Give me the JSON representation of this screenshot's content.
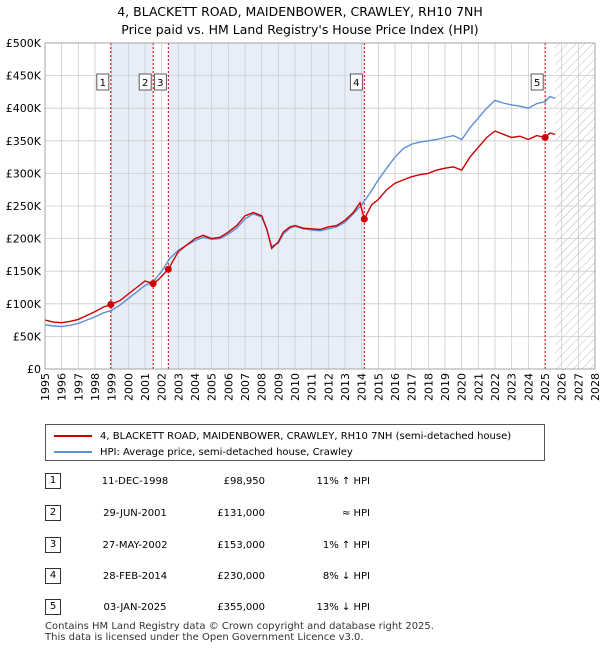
{
  "header": {
    "title_line1": "4, BLACKETT ROAD, MAIDENBOWER, CRAWLEY, RH10 7NH",
    "title_line2": "Price paid vs. HM Land Registry's House Price Index (HPI)"
  },
  "colors": {
    "property": "#cc0000",
    "hpi": "#5b8fd6",
    "marker": "#cc0000",
    "shade": "#e8eef8",
    "grid": "#cccccc"
  },
  "chart_data": {
    "type": "line",
    "title": "Price paid vs. HM Land Registry's House Price Index (HPI)",
    "xlabel": "",
    "ylabel": "",
    "xlim": [
      1995,
      2028
    ],
    "ylim": [
      0,
      500000
    ],
    "x_ticks": [
      1995,
      1996,
      1997,
      1998,
      1999,
      2000,
      2001,
      2002,
      2003,
      2004,
      2005,
      2006,
      2007,
      2008,
      2009,
      2010,
      2011,
      2012,
      2013,
      2014,
      2015,
      2016,
      2017,
      2018,
      2019,
      2020,
      2021,
      2022,
      2023,
      2024,
      2025,
      2026,
      2027,
      2028
    ],
    "y_ticks": [
      0,
      50000,
      100000,
      150000,
      200000,
      250000,
      300000,
      350000,
      400000,
      450000,
      500000
    ],
    "y_tick_labels": [
      "£0",
      "£50K",
      "£100K",
      "£150K",
      "£200K",
      "£250K",
      "£300K",
      "£350K",
      "£400K",
      "£450K",
      "£500K"
    ],
    "series": [
      {
        "name": "4, BLACKETT ROAD, MAIDENBOWER, CRAWLEY, RH10 7NH (semi-detached house)",
        "x": [
          1995,
          1995.5,
          1996,
          1996.5,
          1997,
          1997.5,
          1998,
          1998.5,
          1998.95,
          1999.5,
          2000,
          2000.5,
          2001,
          2001.49,
          2001.8,
          2002.1,
          2002.4,
          2003,
          2003.5,
          2004,
          2004.5,
          2005,
          2005.5,
          2006,
          2006.5,
          2007,
          2007.5,
          2008,
          2008.3,
          2008.6,
          2009,
          2009.3,
          2009.7,
          2010,
          2010.5,
          2011,
          2011.5,
          2012,
          2012.5,
          2013,
          2013.5,
          2013.9,
          2014.16,
          2014.6,
          2015,
          2015.5,
          2016,
          2016.5,
          2017,
          2017.5,
          2018,
          2018.5,
          2019,
          2019.5,
          2020,
          2020.5,
          2021,
          2021.5,
          2022,
          2022.5,
          2023,
          2023.5,
          2024,
          2024.5,
          2025.01,
          2025.3,
          2025.6
        ],
        "values": [
          75000,
          72000,
          71000,
          73000,
          76000,
          82000,
          88000,
          95000,
          98950,
          105000,
          115000,
          125000,
          135000,
          131000,
          137000,
          145000,
          153000,
          180000,
          190000,
          200000,
          205000,
          200000,
          202000,
          210000,
          220000,
          235000,
          240000,
          235000,
          215000,
          185000,
          195000,
          210000,
          218000,
          220000,
          216000,
          215000,
          214000,
          218000,
          220000,
          228000,
          240000,
          255000,
          230000,
          252000,
          260000,
          275000,
          285000,
          290000,
          295000,
          298000,
          300000,
          305000,
          308000,
          310000,
          305000,
          325000,
          340000,
          355000,
          365000,
          360000,
          355000,
          357000,
          352000,
          358000,
          355000,
          362000,
          360000
        ]
      },
      {
        "name": "HPI: Average price, semi-detached house, Crawley",
        "x": [
          1995,
          1995.5,
          1996,
          1996.5,
          1997,
          1997.5,
          1998,
          1998.5,
          1999,
          1999.5,
          2000,
          2000.5,
          2001,
          2001.5,
          2002,
          2002.5,
          2003,
          2003.5,
          2004,
          2004.5,
          2005,
          2005.5,
          2006,
          2006.5,
          2007,
          2007.5,
          2008,
          2008.3,
          2008.6,
          2009,
          2009.3,
          2009.7,
          2010,
          2010.5,
          2011,
          2011.5,
          2012,
          2012.5,
          2013,
          2013.5,
          2014,
          2014.5,
          2015,
          2015.5,
          2016,
          2016.5,
          2017,
          2017.5,
          2018,
          2018.5,
          2019,
          2019.5,
          2020,
          2020.5,
          2021,
          2021.5,
          2022,
          2022.5,
          2023,
          2023.5,
          2024,
          2024.5,
          2025,
          2025.3,
          2025.6
        ],
        "values": [
          68000,
          66000,
          65000,
          67000,
          70000,
          75000,
          80000,
          86000,
          90000,
          98000,
          108000,
          118000,
          128000,
          134000,
          150000,
          170000,
          182000,
          190000,
          197000,
          202000,
          199000,
          200000,
          207000,
          216000,
          230000,
          238000,
          233000,
          215000,
          188000,
          193000,
          207000,
          216000,
          219000,
          215000,
          213000,
          212000,
          215000,
          218000,
          225000,
          238000,
          252000,
          270000,
          290000,
          308000,
          325000,
          338000,
          345000,
          348000,
          350000,
          352000,
          355000,
          358000,
          352000,
          370000,
          385000,
          400000,
          412000,
          408000,
          405000,
          403000,
          400000,
          407000,
          410000,
          418000,
          415000
        ]
      }
    ],
    "markers": [
      {
        "id": "1",
        "x": 1998.95,
        "value": 98950
      },
      {
        "id": "2",
        "x": 2001.49,
        "value": 131000
      },
      {
        "id": "3",
        "x": 2002.4,
        "value": 153000
      },
      {
        "id": "4",
        "x": 2014.16,
        "value": 230000
      },
      {
        "id": "5",
        "x": 2025.01,
        "value": 355000
      }
    ],
    "shaded_ranges": [
      [
        1998.95,
        2001.49
      ],
      [
        2002.4,
        2014.16
      ]
    ],
    "hatched_range": [
      2025.6,
      2028
    ]
  },
  "legend": {
    "property_label": "4, BLACKETT ROAD, MAIDENBOWER, CRAWLEY, RH10 7NH (semi-detached house)",
    "hpi_label": "HPI: Average price, semi-detached house, Crawley"
  },
  "transactions": [
    {
      "num": "1",
      "date": "11-DEC-1998",
      "price": "£98,950",
      "hpi": "11% ↑ HPI"
    },
    {
      "num": "2",
      "date": "29-JUN-2001",
      "price": "£131,000",
      "hpi": "≈ HPI"
    },
    {
      "num": "3",
      "date": "27-MAY-2002",
      "price": "£153,000",
      "hpi": "1% ↑ HPI"
    },
    {
      "num": "4",
      "date": "28-FEB-2014",
      "price": "£230,000",
      "hpi": "8% ↓ HPI"
    },
    {
      "num": "5",
      "date": "03-JAN-2025",
      "price": "£355,000",
      "hpi": "13% ↓ HPI"
    }
  ],
  "footer": {
    "line1": "Contains HM Land Registry data © Crown copyright and database right 2025.",
    "line2": "This data is licensed under the Open Government Licence v3.0."
  }
}
